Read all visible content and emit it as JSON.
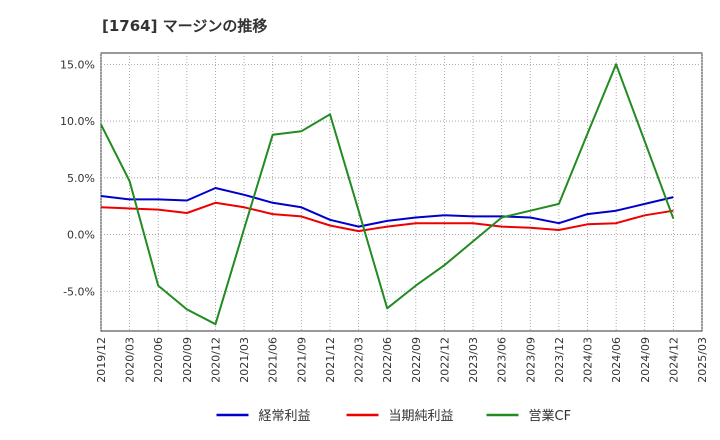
{
  "chart_data": {
    "type": "line",
    "title": "[1764]  マージンの推移",
    "xlabel": "",
    "ylabel": "",
    "x": [
      "2019/12",
      "2020/03",
      "2020/06",
      "2020/09",
      "2020/12",
      "2021/03",
      "2021/06",
      "2021/09",
      "2021/12",
      "2022/03",
      "2022/06",
      "2022/09",
      "2022/12",
      "2023/03",
      "2023/06",
      "2023/09",
      "2023/12",
      "2024/03",
      "2024/06",
      "2024/09",
      "2024/12",
      "2025/03"
    ],
    "ylim": [
      -8.5,
      16.0
    ],
    "yticks": [
      15.0,
      10.0,
      5.0,
      0.0,
      -5.0
    ],
    "ytick_labels": [
      "15.0%",
      "10.0%",
      "5.0%",
      "0.0%",
      "-5.0%"
    ],
    "grid": true,
    "legend_position": "bottom",
    "series": [
      {
        "name": "経常利益",
        "color": "#0000cc",
        "values": [
          3.4,
          3.1,
          3.1,
          3.0,
          4.1,
          3.5,
          2.8,
          2.4,
          1.3,
          0.7,
          1.2,
          1.5,
          1.7,
          1.6,
          1.6,
          1.5,
          1.0,
          1.8,
          2.1,
          2.7,
          3.3,
          null
        ]
      },
      {
        "name": "当期純利益",
        "color": "#ee0000",
        "values": [
          2.4,
          2.3,
          2.2,
          1.9,
          2.8,
          2.4,
          1.8,
          1.6,
          0.8,
          0.3,
          0.7,
          1.0,
          1.0,
          1.0,
          0.7,
          0.6,
          0.4,
          0.9,
          1.0,
          1.7,
          2.1,
          null
        ]
      },
      {
        "name": "営業CF",
        "color": "#228b22",
        "values": [
          9.7,
          4.7,
          -4.5,
          -6.6,
          -7.9,
          0.5,
          8.8,
          9.1,
          10.6,
          2.1,
          -6.5,
          -4.5,
          -2.7,
          -0.6,
          1.5,
          2.1,
          2.7,
          8.9,
          15.0,
          8.2,
          1.4,
          null
        ]
      }
    ]
  }
}
